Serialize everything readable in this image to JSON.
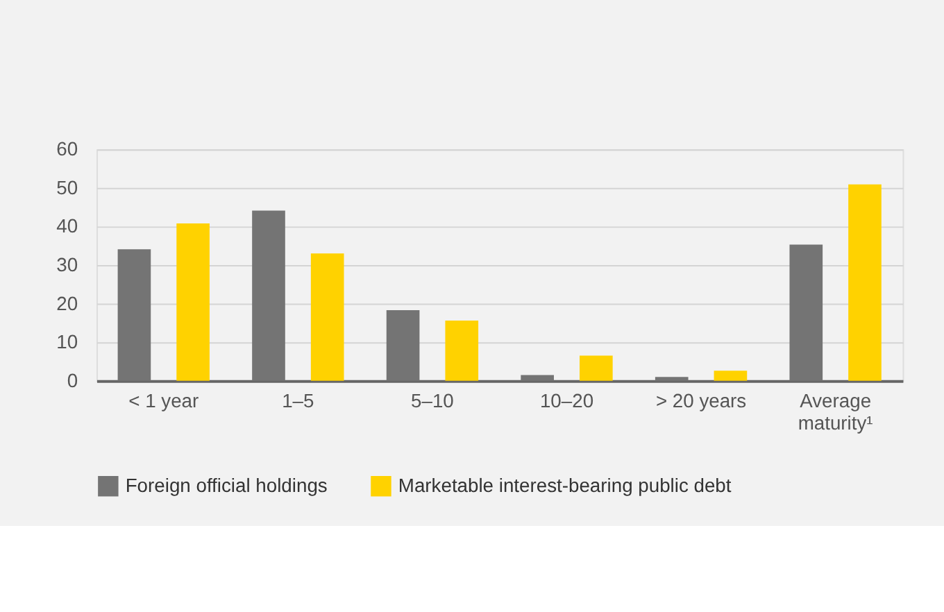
{
  "chart_data": {
    "type": "bar",
    "categories": [
      "< 1 year",
      "1–5",
      "5–10",
      "10–20",
      "> 20 years",
      "Average maturity¹"
    ],
    "series": [
      {
        "name": "Foreign official holdings",
        "color": "#747474",
        "values": [
          34.1,
          44.1,
          18.3,
          1.5,
          1.0,
          35.3
        ]
      },
      {
        "name": "Marketable interest-bearing public debt",
        "color": "#ffd200",
        "values": [
          40.8,
          33.0,
          15.6,
          6.5,
          2.6,
          50.9
        ]
      }
    ],
    "ylim": [
      0,
      60
    ],
    "yticks": [
      0,
      10,
      20,
      30,
      40,
      50,
      60
    ],
    "grid": "y",
    "legend": "bottom"
  }
}
